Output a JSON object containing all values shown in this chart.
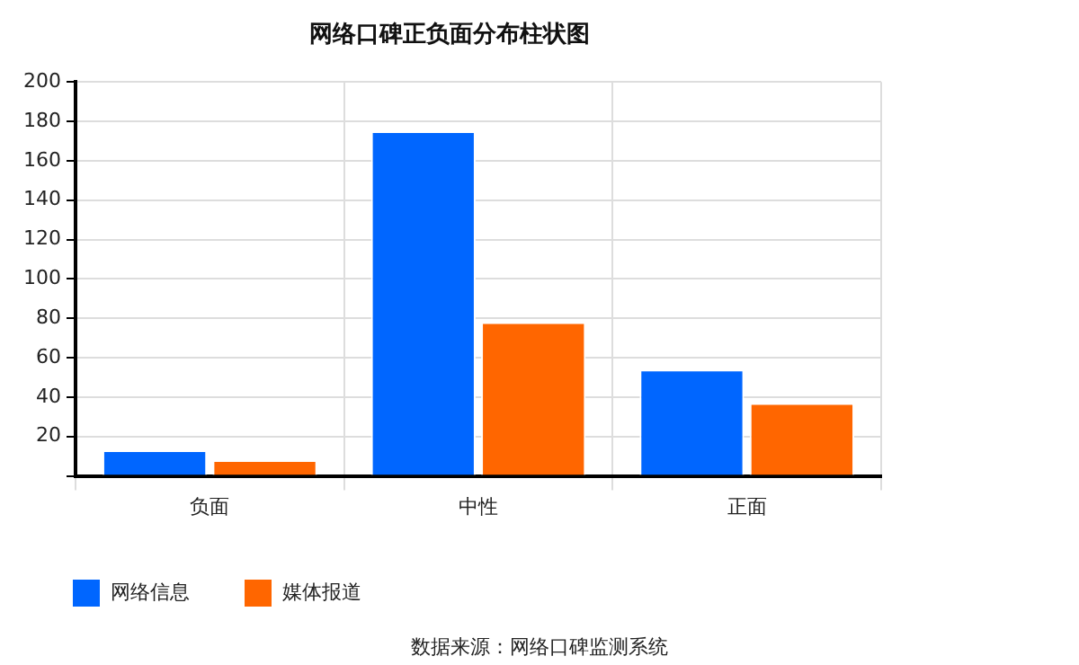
{
  "chart_data": {
    "type": "bar",
    "title": "网络口碑正负面分布柱状图",
    "categories": [
      "负面",
      "中性",
      "正面"
    ],
    "series": [
      {
        "name": "网络信息",
        "color": "#0066ff",
        "values": [
          13,
          175,
          54
        ]
      },
      {
        "name": "媒体报道",
        "color": "#ff6600",
        "values": [
          8,
          78,
          37
        ]
      }
    ],
    "ylim": [
      0,
      200
    ],
    "yticks": [
      {
        "value": 0,
        "label": null
      },
      20,
      40,
      60,
      80,
      100,
      120,
      140,
      160,
      180,
      200
    ],
    "grid": true,
    "legend": "bottom left",
    "annotations": [
      "数据来源：网络口碑监测系统"
    ]
  }
}
